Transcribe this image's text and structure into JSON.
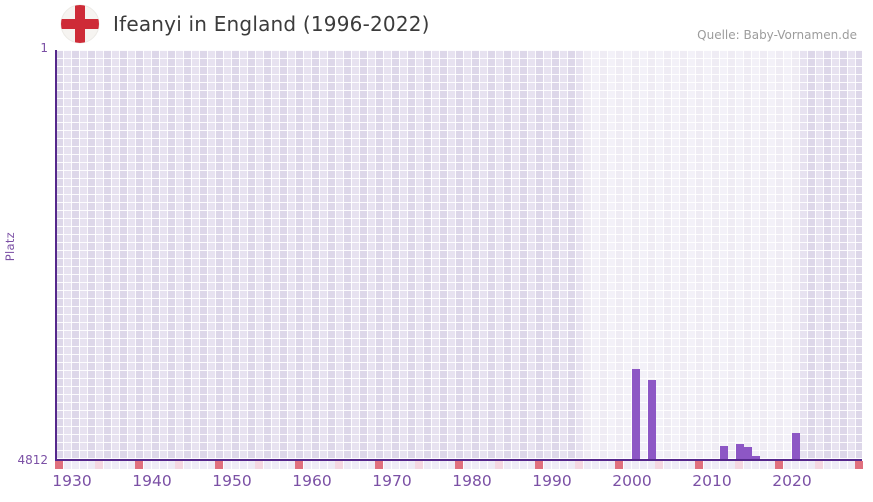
{
  "header": {
    "title": "Ifeanyi in England (1996-2022)",
    "source": "Quelle: Baby-Vornamen.de",
    "flag_icon": "england-flag-icon"
  },
  "chart_data": {
    "type": "bar",
    "title": "Ifeanyi in England (1996-2022)",
    "ylabel": "Platz",
    "y_axis": {
      "top_label": "1",
      "bottom_label": "4812",
      "min": 1,
      "max": 4812,
      "inverted": true
    },
    "x_axis": {
      "start_year": 1928,
      "end_year": 2029,
      "tick_years": [
        1930,
        1940,
        1950,
        1960,
        1970,
        1980,
        1990,
        2000,
        2010,
        2020
      ]
    },
    "series": [
      {
        "year": 2000,
        "rank": 3750
      },
      {
        "year": 2002,
        "rank": 3880
      },
      {
        "year": 2011,
        "rank": 4660
      },
      {
        "year": 2013,
        "rank": 4640
      },
      {
        "year": 2014,
        "rank": 4670
      },
      {
        "year": 2015,
        "rank": 4780
      },
      {
        "year": 2020,
        "rank": 4510
      }
    ],
    "highlight_band": {
      "from_year": 1994,
      "to_year": 2021
    },
    "no_data_markers": {
      "dark_years": [
        1928,
        1938,
        1948,
        1958,
        1968,
        1978,
        1988,
        1998,
        2008,
        2018,
        2028
      ],
      "light_years": [
        1933,
        1943,
        1953,
        1963,
        1973,
        1983,
        1993,
        2003,
        2013,
        2023
      ]
    },
    "legend": "none",
    "grid": true,
    "colors": {
      "bar": "#8d57c5",
      "axis_line": "#55288c",
      "tick_label": "#7b50a5",
      "marker_dark": "#e0707e",
      "marker_light": "#f5d7e1",
      "flag_cross": "#ce2b37"
    }
  }
}
